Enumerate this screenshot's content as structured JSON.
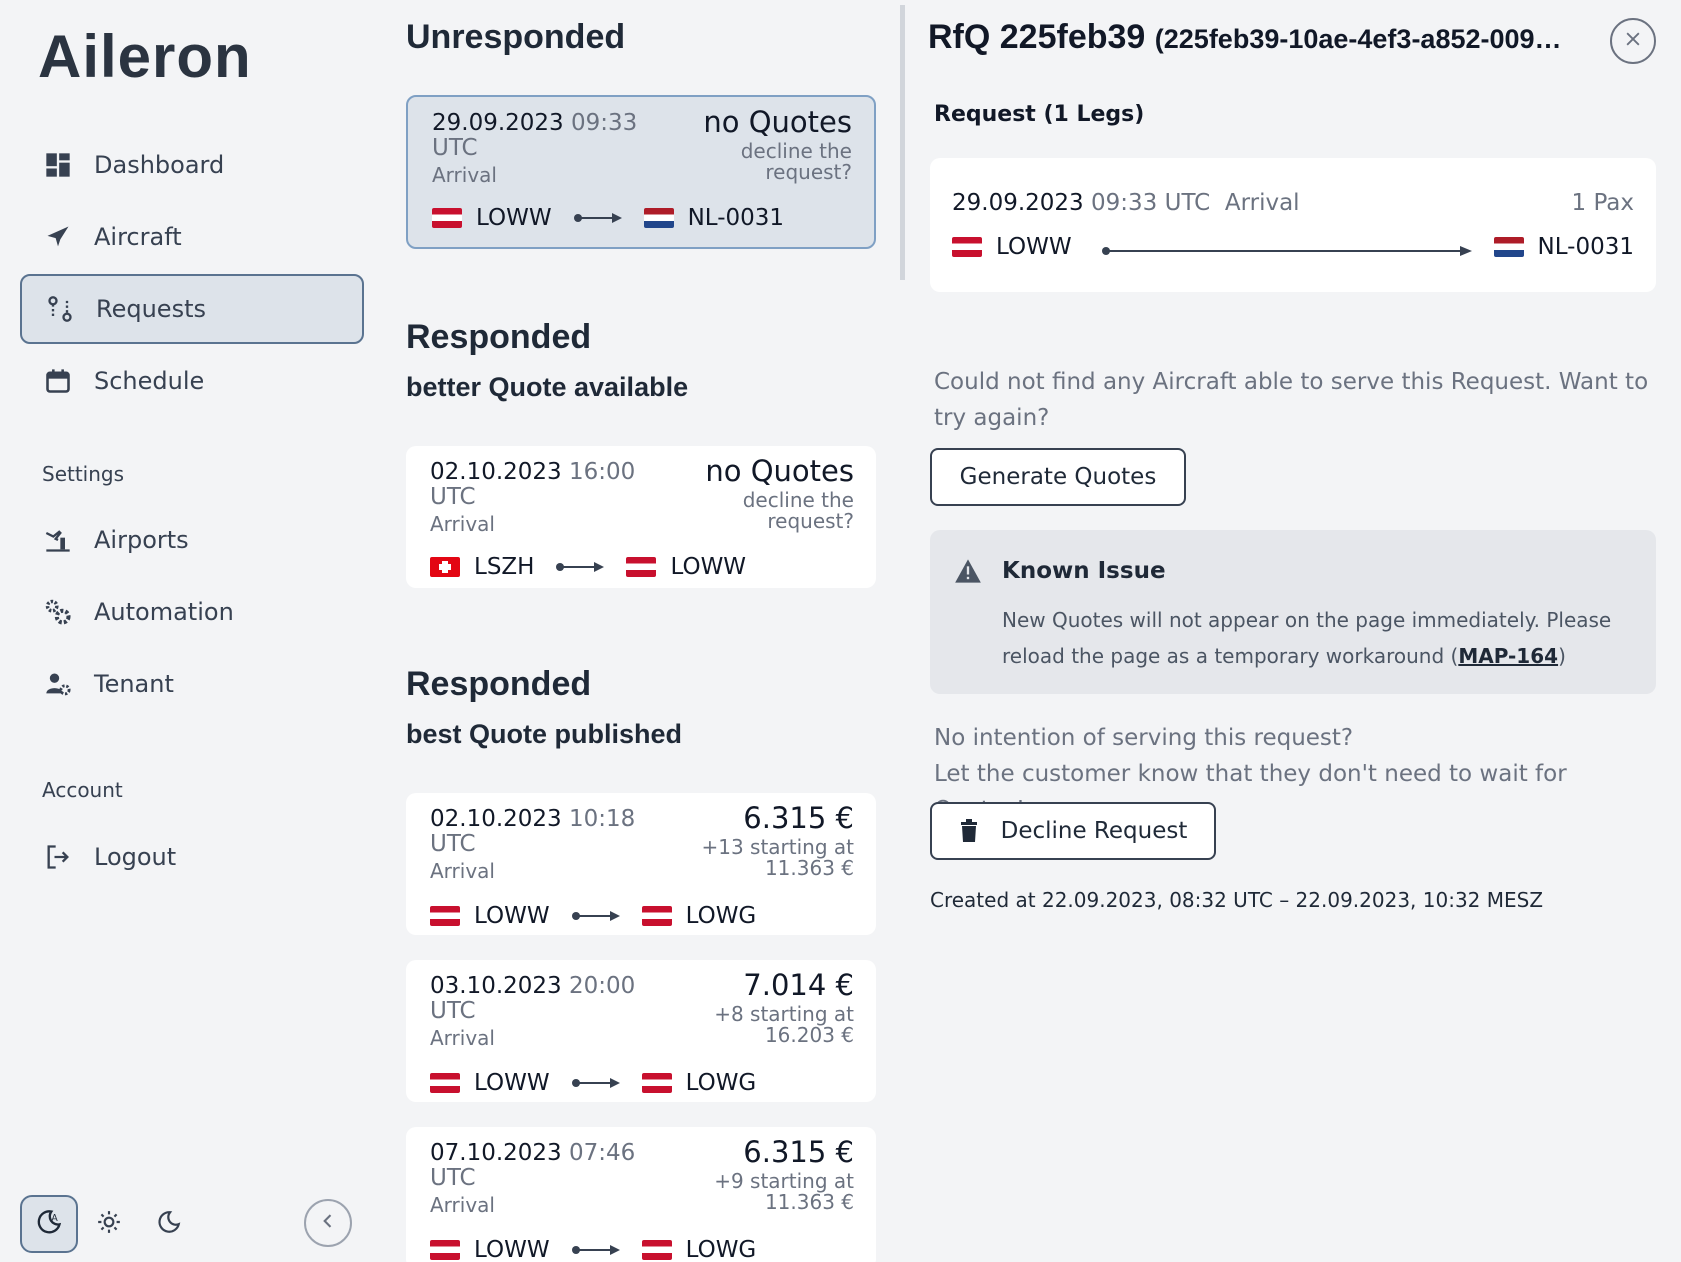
{
  "app": {
    "logo": "Aileron"
  },
  "sidebar": {
    "items": [
      {
        "label": "Dashboard",
        "icon": "dashboard-icon"
      },
      {
        "label": "Aircraft",
        "icon": "plane-icon"
      },
      {
        "label": "Requests",
        "icon": "route-icon",
        "active": true
      },
      {
        "label": "Schedule",
        "icon": "calendar-icon"
      }
    ],
    "settings_label": "Settings",
    "settings_items": [
      {
        "label": "Airports",
        "icon": "airport-icon"
      },
      {
        "label": "Automation",
        "icon": "gears-icon"
      },
      {
        "label": "Tenant",
        "icon": "user-gear-icon"
      }
    ],
    "account_label": "Account",
    "account_items": [
      {
        "label": "Logout",
        "icon": "logout-icon"
      }
    ]
  },
  "sections": {
    "unresponded": "Unresponded",
    "responded1_title": "Responded",
    "responded1_sub": "better Quote available",
    "responded2_title": "Responded",
    "responded2_sub": "best Quote published"
  },
  "cards": [
    {
      "date": "29.09.2023",
      "time": "09:33",
      "utc": "UTC",
      "type": "Arrival",
      "main": "no Quotes",
      "sub": "decline the request?",
      "from": "LOWW",
      "to": "NL-0031"
    },
    {
      "date": "02.10.2023",
      "time": "16:00",
      "utc": "UTC",
      "type": "Arrival",
      "main": "no Quotes",
      "sub": "decline the request?",
      "from": "LSZH",
      "to": "LOWW"
    },
    {
      "date": "02.10.2023",
      "time": "10:18",
      "utc": "UTC",
      "type": "Arrival",
      "main": "6.315 €",
      "sub": "+13 starting at 11.363 €",
      "from": "LOWW",
      "to": "LOWG"
    },
    {
      "date": "03.10.2023",
      "time": "20:00",
      "utc": "UTC",
      "type": "Arrival",
      "main": "7.014 €",
      "sub": "+8 starting at 16.203 €",
      "from": "LOWW",
      "to": "LOWG"
    },
    {
      "date": "07.10.2023",
      "time": "07:46",
      "utc": "UTC",
      "type": "Arrival",
      "main": "6.315 €",
      "sub": "+9 starting at 11.363 €",
      "from": "LOWW",
      "to": "LOWG"
    }
  ],
  "detail": {
    "title": "RfQ 225feb39",
    "uuid": "(225feb39-10ae-4ef3-a852-009…",
    "request_label": "Request (1 Legs)",
    "leg": {
      "date": "29.09.2023",
      "time": "09:33 UTC",
      "type": "Arrival",
      "pax": "1 Pax",
      "from": "LOWW",
      "to": "NL-0031"
    },
    "no_aircraft_msg": "Could not find any Aircraft able to serve this Request. Want to try again?",
    "generate_btn": "Generate Quotes",
    "issue_title": "Known Issue",
    "issue_body": "New Quotes will not appear on the page immediately. Please reload the page as a temporary workaround (",
    "issue_link": "MAP-164",
    "issue_end": ")",
    "decline_msg_1": "No intention of serving this request?",
    "decline_msg_2": "Let the customer know that they don't need to wait for Quotes!",
    "decline_btn": "Decline Request",
    "created": "Created at 22.09.2023, 08:32 UTC  –  22.09.2023, 10:32 MESZ"
  },
  "colors": {
    "accent_border": "#5a7390",
    "selected_card_border": "#7fa0c4",
    "at_red": "#c8102e"
  }
}
